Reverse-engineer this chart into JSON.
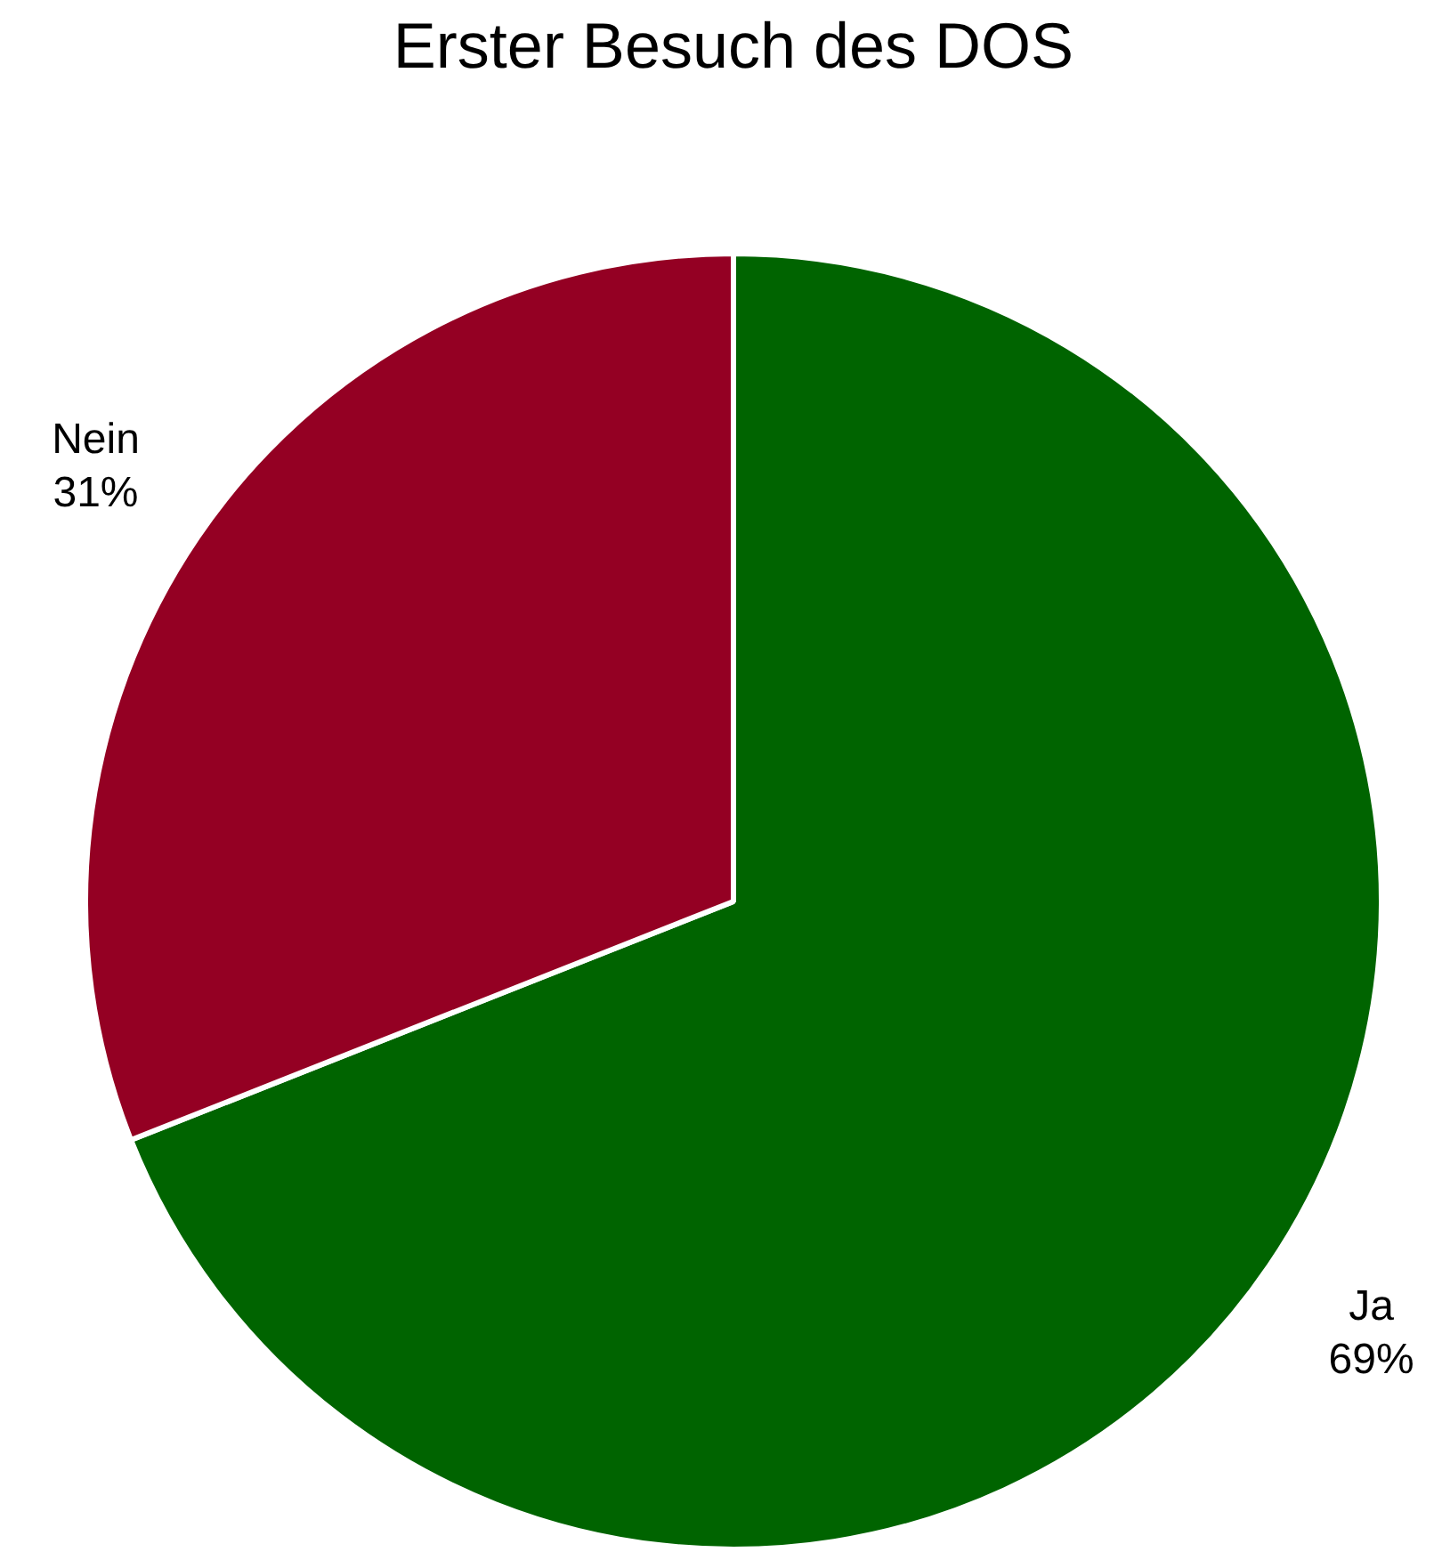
{
  "chart_data": {
    "type": "pie",
    "title": "Erster Besuch des DOS",
    "categories": [
      "Ja",
      "Nein"
    ],
    "values": [
      69,
      31
    ],
    "value_labels": [
      "69%",
      "31%"
    ],
    "colors": [
      "#006400",
      "#940023"
    ],
    "legend": false
  }
}
